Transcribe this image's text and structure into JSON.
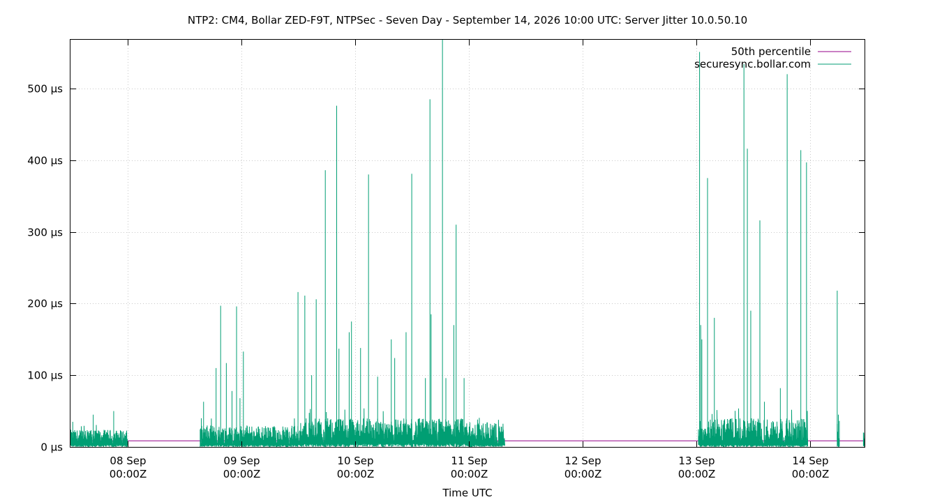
{
  "chart_data": {
    "type": "line",
    "title": "NTP2: CM4, Bollar ZED-F9T, NTPSec - Seven Day - September 14, 2026 10:00 UTC: Server Jitter 10.0.50.10",
    "xlabel": "Time UTC",
    "ylabel": "",
    "x_range_days": [
      7.5,
      14.48
    ],
    "ylim": [
      0,
      568
    ],
    "grid": true,
    "legend_position": "top-right",
    "y_ticks": [
      {
        "value": 0,
        "label": "0 µs"
      },
      {
        "value": 100,
        "label": "100 µs"
      },
      {
        "value": 200,
        "label": "200 µs"
      },
      {
        "value": 300,
        "label": "300 µs"
      },
      {
        "value": 400,
        "label": "400 µs"
      },
      {
        "value": 500,
        "label": "500 µs"
      }
    ],
    "x_ticks": [
      {
        "day": 8,
        "label1": "08 Sep",
        "label2": "00:00Z"
      },
      {
        "day": 9,
        "label1": "09 Sep",
        "label2": "00:00Z"
      },
      {
        "day": 10,
        "label1": "10 Sep",
        "label2": "00:00Z"
      },
      {
        "day": 11,
        "label1": "11 Sep",
        "label2": "00:00Z"
      },
      {
        "day": 12,
        "label1": "12 Sep",
        "label2": "00:00Z"
      },
      {
        "day": 13,
        "label1": "13 Sep",
        "label2": "00:00Z"
      },
      {
        "day": 14,
        "label1": "14 Sep",
        "label2": "00:00Z"
      }
    ],
    "series": [
      {
        "name": "50th percentile",
        "color": "#94008a",
        "value": 8.5
      },
      {
        "name": "securesync.bollar.com",
        "color": "#009e73",
        "segments": [
          {
            "start": 7.5,
            "end": 8.0,
            "base": [
              3,
              24
            ],
            "peak": 32
          },
          {
            "start": 8.64,
            "end": 9.55,
            "base": [
              3,
              30
            ],
            "peak": 40
          },
          {
            "start": 9.55,
            "end": 10.98,
            "base": [
              5,
              40
            ],
            "peak": 55
          },
          {
            "start": 10.98,
            "end": 11.32,
            "base": [
              3,
              35
            ],
            "peak": 45
          },
          {
            "start": 13.02,
            "end": 13.98,
            "base": [
              3,
              40
            ],
            "peak": 55
          },
          {
            "start": 14.24,
            "end": 14.26,
            "base": [
              2,
              40
            ],
            "peak": 45
          },
          {
            "start": 14.47,
            "end": 14.48,
            "base": [
              2,
              28
            ],
            "peak": 30
          }
        ],
        "spikes": [
          [
            7.52,
            35
          ],
          [
            7.7,
            45
          ],
          [
            7.88,
            50
          ],
          [
            8.65,
            40
          ],
          [
            8.67,
            63
          ],
          [
            8.78,
            110
          ],
          [
            8.82,
            197
          ],
          [
            8.87,
            117
          ],
          [
            8.92,
            78
          ],
          [
            8.96,
            196
          ],
          [
            8.99,
            68
          ],
          [
            9.02,
            133
          ],
          [
            9.5,
            216
          ],
          [
            9.56,
            211
          ],
          [
            9.62,
            100
          ],
          [
            9.66,
            206
          ],
          [
            9.74,
            386
          ],
          [
            9.84,
            476
          ],
          [
            9.86,
            137
          ],
          [
            9.95,
            160
          ],
          [
            9.97,
            175
          ],
          [
            10.05,
            138
          ],
          [
            10.12,
            380
          ],
          [
            10.2,
            98
          ],
          [
            10.32,
            150
          ],
          [
            10.35,
            124
          ],
          [
            10.45,
            160
          ],
          [
            10.5,
            381
          ],
          [
            10.62,
            96
          ],
          [
            10.66,
            485
          ],
          [
            10.67,
            185
          ],
          [
            10.77,
            568
          ],
          [
            10.8,
            96
          ],
          [
            10.87,
            170
          ],
          [
            10.89,
            310
          ],
          [
            10.96,
            96
          ],
          [
            13.03,
            551
          ],
          [
            13.04,
            170
          ],
          [
            13.05,
            150
          ],
          [
            13.1,
            375
          ],
          [
            13.16,
            180
          ],
          [
            13.42,
            534
          ],
          [
            13.45,
            416
          ],
          [
            13.48,
            190
          ],
          [
            13.56,
            316
          ],
          [
            13.6,
            63
          ],
          [
            13.74,
            82
          ],
          [
            13.8,
            520
          ],
          [
            13.92,
            414
          ],
          [
            13.97,
            397
          ],
          [
            14.24,
            218
          ],
          [
            14.25,
            45
          ]
        ]
      }
    ]
  }
}
